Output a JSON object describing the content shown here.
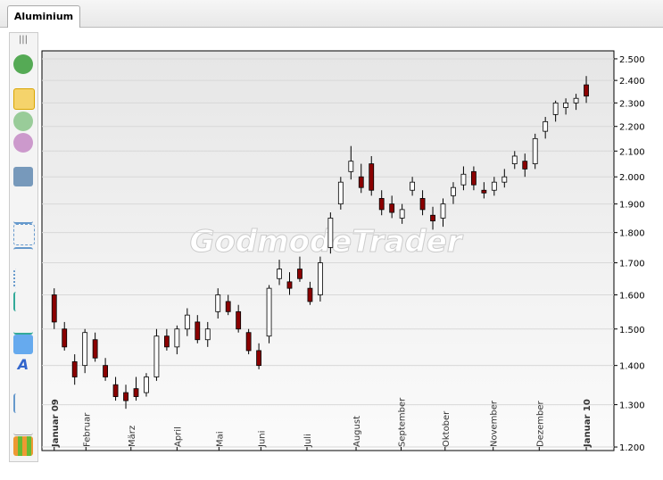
{
  "tab": "Aluminium",
  "watermark": "GodmodeTrader",
  "chart_data": {
    "type": "candlestick",
    "log_scale": true,
    "grid": true,
    "up_color": "#ffffff",
    "down_color": "#8b0000",
    "open": [
      1.6,
      1.5,
      1.41,
      1.4,
      1.47,
      1.4,
      1.35,
      1.33,
      1.34,
      1.33,
      1.37,
      1.48,
      1.45,
      1.5,
      1.52,
      1.47,
      1.55,
      1.58,
      1.55,
      1.49,
      1.44,
      1.48,
      1.65,
      1.64,
      1.68,
      1.62,
      1.6,
      1.75,
      1.9,
      2.02,
      2.0,
      2.05,
      1.92,
      1.9,
      1.85,
      1.95,
      1.92,
      1.86,
      1.85,
      1.93,
      1.97,
      2.02,
      1.95,
      1.95,
      1.98,
      2.05,
      2.06,
      2.05,
      2.18,
      2.25,
      2.28,
      2.3,
      2.38
    ],
    "high": [
      1.62,
      1.52,
      1.43,
      1.5,
      1.49,
      1.42,
      1.37,
      1.35,
      1.37,
      1.38,
      1.5,
      1.5,
      1.51,
      1.56,
      1.54,
      1.52,
      1.62,
      1.6,
      1.57,
      1.5,
      1.46,
      1.63,
      1.71,
      1.67,
      1.72,
      1.64,
      1.72,
      1.87,
      2.0,
      2.12,
      2.05,
      2.08,
      1.95,
      1.93,
      1.9,
      2.0,
      1.95,
      1.89,
      1.92,
      1.98,
      2.04,
      2.04,
      1.98,
      2.0,
      2.03,
      2.1,
      2.09,
      2.17,
      2.24,
      2.31,
      2.32,
      2.34,
      2.42
    ],
    "low": [
      1.5,
      1.44,
      1.35,
      1.38,
      1.41,
      1.36,
      1.31,
      1.29,
      1.31,
      1.32,
      1.36,
      1.44,
      1.43,
      1.48,
      1.46,
      1.45,
      1.53,
      1.54,
      1.49,
      1.43,
      1.39,
      1.46,
      1.63,
      1.6,
      1.64,
      1.57,
      1.58,
      1.73,
      1.88,
      1.99,
      1.94,
      1.93,
      1.86,
      1.85,
      1.83,
      1.93,
      1.86,
      1.81,
      1.82,
      1.9,
      1.95,
      1.95,
      1.92,
      1.93,
      1.96,
      2.03,
      2.0,
      2.03,
      2.15,
      2.22,
      2.25,
      2.27,
      2.3
    ],
    "close": [
      1.52,
      1.45,
      1.37,
      1.49,
      1.42,
      1.37,
      1.32,
      1.31,
      1.32,
      1.37,
      1.48,
      1.45,
      1.5,
      1.54,
      1.47,
      1.5,
      1.6,
      1.55,
      1.5,
      1.44,
      1.4,
      1.62,
      1.68,
      1.62,
      1.65,
      1.58,
      1.7,
      1.85,
      1.98,
      2.06,
      1.96,
      1.95,
      1.88,
      1.87,
      1.88,
      1.98,
      1.88,
      1.84,
      1.9,
      1.96,
      2.01,
      1.97,
      1.94,
      1.98,
      2.0,
      2.08,
      2.03,
      2.15,
      2.22,
      2.3,
      2.3,
      2.32,
      2.33
    ],
    "xlim": [
      -1.2,
      54.7
    ],
    "xticks": [
      {
        "value": 0,
        "label": "Januar 09"
      },
      {
        "value": 3.1,
        "label": "Februar"
      },
      {
        "value": 7.5,
        "label": "März"
      },
      {
        "value": 12.0,
        "label": "April"
      },
      {
        "value": 16.1,
        "label": "Mai"
      },
      {
        "value": 20.2,
        "label": "Juni"
      },
      {
        "value": 24.7,
        "label": "Juli"
      },
      {
        "value": 29.5,
        "label": "August"
      },
      {
        "value": 33.9,
        "label": "September"
      },
      {
        "value": 38.2,
        "label": "Oktober"
      },
      {
        "value": 42.9,
        "label": "November"
      },
      {
        "value": 47.4,
        "label": "Dezember"
      },
      {
        "value": 52.0,
        "label": "Januar 10"
      }
    ],
    "ylim": [
      1.192,
      2.538
    ],
    "yticks": [
      {
        "value": 1.2,
        "label": "1.200"
      },
      {
        "value": 1.3,
        "label": "1.300"
      },
      {
        "value": 1.4,
        "label": "1.400"
      },
      {
        "value": 1.5,
        "label": "1.500"
      },
      {
        "value": 1.6,
        "label": "1.600"
      },
      {
        "value": 1.7,
        "label": "1.700"
      },
      {
        "value": 1.8,
        "label": "1.800"
      },
      {
        "value": 1.9,
        "label": "1.900"
      },
      {
        "value": 2.0,
        "label": "2.000"
      },
      {
        "value": 2.1,
        "label": "2.100"
      },
      {
        "value": 2.2,
        "label": "2.200"
      },
      {
        "value": 2.3,
        "label": "2.300"
      },
      {
        "value": 2.4,
        "label": "2.400"
      },
      {
        "value": 2.5,
        "label": "2.500"
      }
    ]
  }
}
